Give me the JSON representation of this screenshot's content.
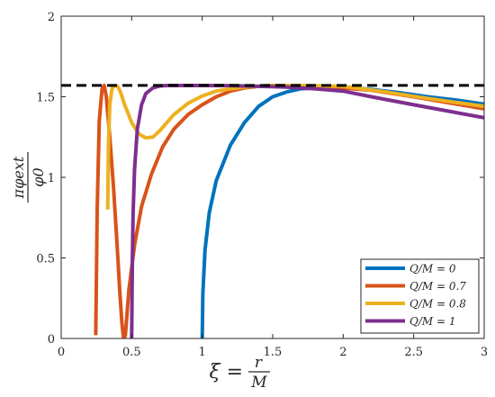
{
  "chart_data": {
    "type": "line",
    "xlim": [
      0,
      3
    ],
    "ylim": [
      0,
      2
    ],
    "x_ticks": [
      "0",
      "0.5",
      "1",
      "1.5",
      "2",
      "2.5",
      "3"
    ],
    "y_ticks": [
      "0",
      "0.5",
      "1",
      "1.5",
      "2"
    ],
    "xlabel": {
      "lhs": "ξ =",
      "num": "r",
      "den": "M"
    },
    "ylabel": {
      "num": "πφext",
      "den": "φ0"
    },
    "grid": false,
    "legend_position": "bottom-right",
    "reference_line": {
      "y": 1.5708,
      "style": "dashed",
      "color": "#000000"
    },
    "series": [
      {
        "name": "Q/M = 0",
        "color": "#0072BD",
        "x": [
          1.0,
          1.005,
          1.02,
          1.05,
          1.1,
          1.2,
          1.3,
          1.4,
          1.5,
          1.6,
          1.7,
          1.8,
          1.9,
          2.0,
          2.2,
          2.4,
          2.6,
          2.8,
          3.0
        ],
        "y": [
          0.0,
          0.28,
          0.55,
          0.78,
          0.98,
          1.2,
          1.34,
          1.44,
          1.5,
          1.53,
          1.55,
          1.555,
          1.56,
          1.56,
          1.545,
          1.525,
          1.5,
          1.48,
          1.455
        ]
      },
      {
        "name": "Q/M = 0.7",
        "color": "#D95319",
        "x": [
          0.245,
          0.255,
          0.27,
          0.29,
          0.305,
          0.32,
          0.345,
          0.37,
          0.395,
          0.415,
          0.43,
          0.44,
          0.445,
          0.455,
          0.48,
          0.52,
          0.57,
          0.64,
          0.72,
          0.8,
          0.9,
          1.0,
          1.1,
          1.2,
          1.3,
          1.4,
          1.5,
          1.6,
          1.8,
          2.0,
          2.2,
          2.5,
          3.0
        ],
        "y": [
          0.02,
          0.8,
          1.35,
          1.55,
          1.57,
          1.5,
          1.25,
          0.95,
          0.6,
          0.3,
          0.1,
          0.02,
          0.0,
          0.02,
          0.3,
          0.58,
          0.82,
          1.02,
          1.19,
          1.3,
          1.39,
          1.45,
          1.5,
          1.535,
          1.555,
          1.565,
          1.57,
          1.57,
          1.565,
          1.555,
          1.54,
          1.5,
          1.425
        ]
      },
      {
        "name": "Q/M = 0.8",
        "color": "#EDB120",
        "x": [
          0.33,
          0.335,
          0.345,
          0.36,
          0.38,
          0.4,
          0.42,
          0.45,
          0.5,
          0.55,
          0.6,
          0.65,
          0.7,
          0.75,
          0.8,
          0.9,
          1.0,
          1.1,
          1.2,
          1.3,
          1.4,
          1.5,
          1.7,
          2.0,
          2.3,
          2.6,
          3.0
        ],
        "y": [
          0.8,
          1.2,
          1.45,
          1.55,
          1.57,
          1.565,
          1.53,
          1.45,
          1.34,
          1.27,
          1.245,
          1.25,
          1.29,
          1.34,
          1.39,
          1.46,
          1.505,
          1.535,
          1.55,
          1.56,
          1.565,
          1.568,
          1.57,
          1.565,
          1.53,
          1.49,
          1.44
        ]
      },
      {
        "name": "Q/M = 1",
        "color": "#7E2F8E",
        "x": [
          0.5,
          0.505,
          0.51,
          0.52,
          0.54,
          0.57,
          0.6,
          0.65,
          0.7,
          0.75,
          0.8,
          0.9,
          1.0,
          1.2,
          1.4,
          1.6,
          1.8,
          2.0,
          2.2,
          2.5,
          3.0
        ],
        "y": [
          0.0,
          0.5,
          0.78,
          1.05,
          1.3,
          1.45,
          1.52,
          1.555,
          1.567,
          1.57,
          1.57,
          1.57,
          1.57,
          1.569,
          1.565,
          1.56,
          1.55,
          1.535,
          1.5,
          1.45,
          1.37
        ]
      }
    ]
  }
}
